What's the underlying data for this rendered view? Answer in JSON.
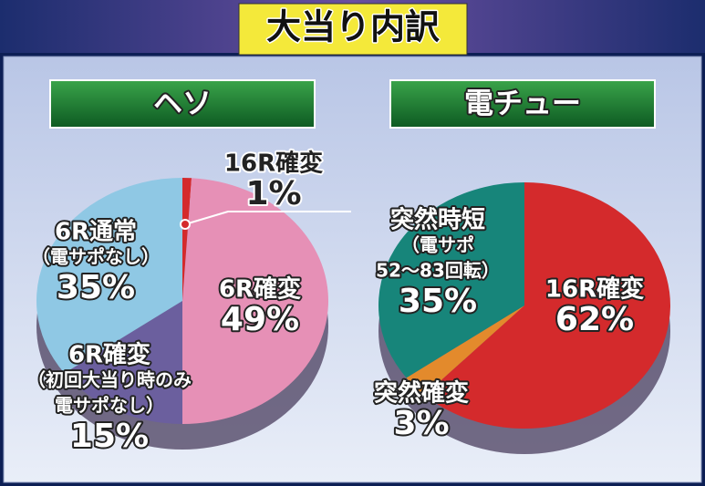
{
  "title": "大当り内訳",
  "chart_data": [
    {
      "type": "pie",
      "title": "ヘソ",
      "categories": [
        [
          "16R確変"
        ],
        [
          "6R確変"
        ],
        [
          "6R確変",
          "（初回大当り時のみ",
          "電サポなし）"
        ],
        [
          "6R通常",
          "（電サポなし）"
        ]
      ],
      "values": [
        1,
        49,
        15,
        35
      ],
      "value_labels": [
        "1%",
        "49%",
        "15%",
        "35%"
      ],
      "colors": [
        "#d42a2c",
        "#e690b6",
        "#6b5f9e",
        "#8fc8e4"
      ]
    },
    {
      "type": "pie",
      "title": "電チュー",
      "categories": [
        [
          "16R確変"
        ],
        [
          "突然確変"
        ],
        [
          "突然時短",
          "（電サポ",
          "52～83回転）"
        ]
      ],
      "values": [
        62,
        3,
        35
      ],
      "value_labels": [
        "62%",
        "3%",
        "35%"
      ],
      "colors": [
        "#d42a2c",
        "#e38a2c",
        "#17857a"
      ]
    }
  ]
}
